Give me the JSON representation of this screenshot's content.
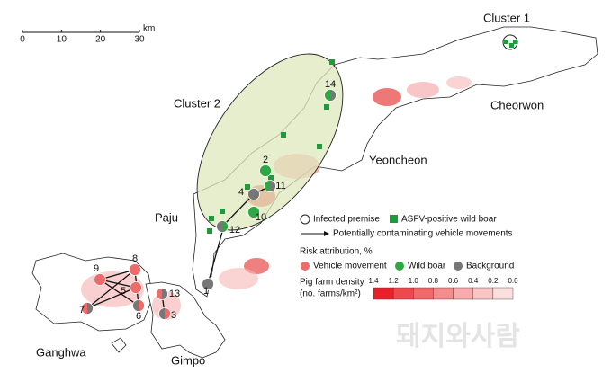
{
  "scale_bar": {
    "ticks": [
      0,
      10,
      20,
      30
    ],
    "unit": "km"
  },
  "clusters": [
    "Cluster 1",
    "Cluster 2"
  ],
  "regions": [
    "Cheorwon",
    "Yeoncheon",
    "Paju",
    "Ganghwa",
    "Gimpo"
  ],
  "premises": [
    "1",
    "2",
    "3",
    "4",
    "5",
    "6",
    "7",
    "8",
    "9",
    "10",
    "11",
    "12",
    "13",
    "14"
  ],
  "legend": {
    "infected": "Infected premise",
    "wild_boar_positive": "ASFV-positive wild boar",
    "vehicle_arrow": "Potentially contaminating vehicle movements",
    "risk_title": "Risk attribution, %",
    "risk_items": [
      "Vehicle movement",
      "Wild boar",
      "Background"
    ],
    "density_title": "Pig farm density",
    "density_unit": "(no. farms/km²)",
    "density_ticks": [
      "1.4",
      "1.2",
      "1.0",
      "0.8",
      "0.6",
      "0.4",
      "0.2",
      "0.0"
    ]
  },
  "watermark": "돼지와사람"
}
